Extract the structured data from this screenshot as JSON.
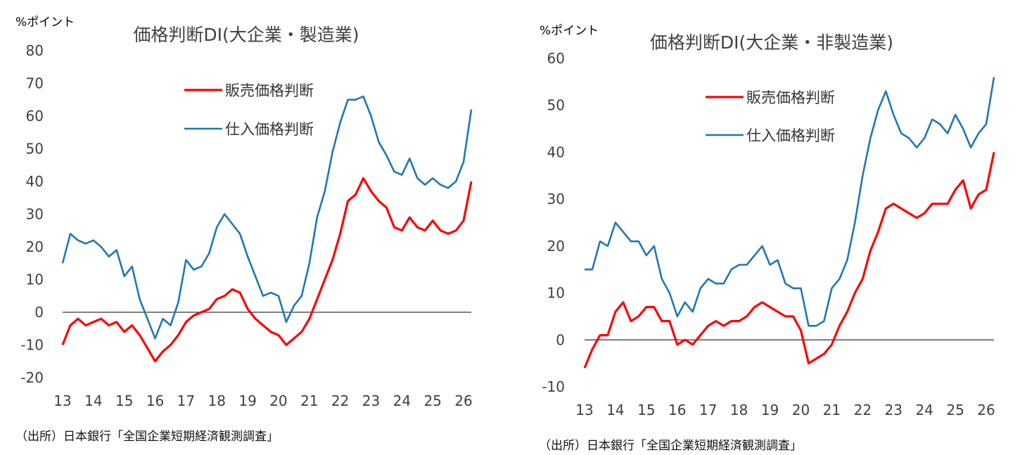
{
  "source_note": "（出所）日本銀行「全国企業短期経済観測調査」",
  "colors": {
    "sales": "#ff0000",
    "purchase": "#1f77b4",
    "zero_line": "#000000"
  },
  "chart_data": [
    {
      "type": "line",
      "title": "価格判断DI(大企業・製造業)",
      "unit": "%ポイント",
      "ylim": [
        -20,
        80
      ],
      "yticks": [
        80,
        70,
        60,
        50,
        40,
        30,
        20,
        10,
        0,
        -10,
        -20
      ],
      "xticks": [
        "13",
        "14",
        "15",
        "16",
        "17",
        "18",
        "19",
        "20",
        "21",
        "22",
        "23",
        "24",
        "25",
        "26"
      ],
      "x_start": 13.0,
      "x_step": 0.25,
      "grid": false,
      "legend": "top-center",
      "series": [
        {
          "name": "販売価格判断",
          "color": "#ff0000",
          "values": [
            -10,
            -4,
            -2,
            -4,
            -3,
            -2,
            -4,
            -3,
            -6,
            -4,
            -7,
            -11,
            -15,
            -12,
            -10,
            -7,
            -3,
            -1,
            0,
            1,
            4,
            5,
            7,
            6,
            1,
            -2,
            -4,
            -6,
            -7,
            -10,
            -8,
            -6,
            -2,
            4,
            10,
            16,
            24,
            34,
            36,
            41,
            37,
            34,
            32,
            26,
            25,
            29,
            26,
            25,
            28,
            25,
            24,
            25,
            28,
            40
          ]
        },
        {
          "name": "仕入価格判断",
          "color": "#1f77b4",
          "values": [
            15,
            24,
            22,
            21,
            22,
            20,
            17,
            19,
            11,
            14,
            4,
            -2,
            -8,
            -2,
            -4,
            3,
            16,
            13,
            14,
            18,
            26,
            30,
            27,
            24,
            17,
            11,
            5,
            6,
            5,
            -3,
            2,
            5,
            15,
            29,
            37,
            49,
            58,
            65,
            65,
            66,
            60,
            52,
            48,
            43,
            42,
            47,
            41,
            39,
            41,
            39,
            38,
            40,
            46,
            62
          ]
        }
      ]
    },
    {
      "type": "line",
      "title": "価格判断DI(大企業・非製造業)",
      "unit": "%ポイント",
      "ylim": [
        -10,
        60
      ],
      "yticks": [
        60,
        50,
        40,
        30,
        20,
        10,
        0,
        -10
      ],
      "xticks": [
        "13",
        "14",
        "15",
        "16",
        "17",
        "18",
        "19",
        "20",
        "21",
        "22",
        "23",
        "24",
        "25",
        "26"
      ],
      "x_start": 13.0,
      "x_step": 0.25,
      "grid": false,
      "legend": "top-center",
      "series": [
        {
          "name": "販売価格判断",
          "color": "#ff0000",
          "values": [
            -6,
            -2,
            1,
            1,
            6,
            8,
            4,
            5,
            7,
            7,
            4,
            4,
            -1,
            0,
            -1,
            1,
            3,
            4,
            3,
            4,
            4,
            5,
            7,
            8,
            7,
            6,
            5,
            5,
            2,
            -5,
            -4,
            -3,
            -1,
            3,
            6,
            10,
            13,
            19,
            23,
            28,
            29,
            28,
            27,
            26,
            27,
            29,
            29,
            29,
            32,
            34,
            28,
            31,
            32,
            40
          ]
        },
        {
          "name": "仕入価格判断",
          "color": "#1f77b4",
          "values": [
            15,
            15,
            21,
            20,
            25,
            23,
            21,
            21,
            18,
            20,
            13,
            10,
            5,
            8,
            6,
            11,
            13,
            12,
            12,
            15,
            16,
            16,
            18,
            20,
            16,
            17,
            12,
            11,
            11,
            3,
            3,
            4,
            11,
            13,
            17,
            25,
            35,
            43,
            49,
            53,
            48,
            44,
            43,
            41,
            43,
            47,
            46,
            44,
            48,
            45,
            41,
            44,
            46,
            56
          ]
        }
      ]
    }
  ]
}
